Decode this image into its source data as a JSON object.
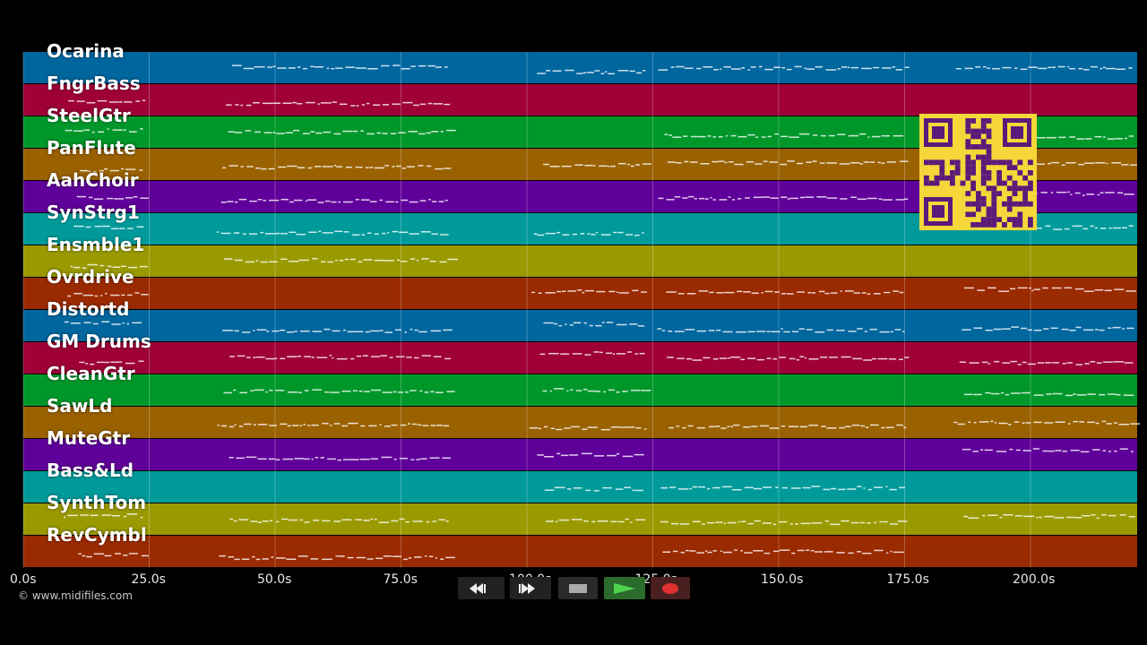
{
  "tracks": [
    {
      "name": "Ocarina",
      "color": "#00669e"
    },
    {
      "name": "FngrBass",
      "color": "#9e0037"
    },
    {
      "name": "SteelGtr",
      "color": "#00972a"
    },
    {
      "name": "PanFlute",
      "color": "#9a6100"
    },
    {
      "name": "AahChoir",
      "color": "#60009a"
    },
    {
      "name": "SynStrg1",
      "color": "#009a9a"
    },
    {
      "name": "Ensmble1",
      "color": "#9a9a00"
    },
    {
      "name": "Ovrdrive",
      "color": "#9a2a00"
    },
    {
      "name": "Distortd",
      "color": "#00669e"
    },
    {
      "name": "GM Drums",
      "color": "#9e0037"
    },
    {
      "name": "CleanGtr",
      "color": "#00972a"
    },
    {
      "name": "SawLd",
      "color": "#9a6100"
    },
    {
      "name": "MuteGtr",
      "color": "#60009a"
    },
    {
      "name": "Bass&Ld",
      "color": "#009a9a"
    },
    {
      "name": "SynthTom",
      "color": "#9a9a00"
    },
    {
      "name": "RevCymbl",
      "color": "#9a2a00"
    }
  ],
  "timeline": {
    "ticks": [
      "0.0s",
      "25.0s",
      "50.0s",
      "75.0s",
      "100.0s",
      "125.0s",
      "150.0s",
      "175.0s",
      "200.0s"
    ]
  },
  "footer": {
    "copyright": "© www.midifiles.com"
  },
  "controls": {
    "rewind": "rewind-icon",
    "fast_forward": "fast-forward-icon",
    "stop": "stop-icon",
    "play": "play-icon",
    "record": "record-icon"
  }
}
